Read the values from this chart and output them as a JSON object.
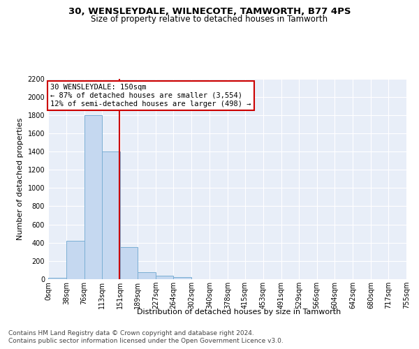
{
  "title": "30, WENSLEYDALE, WILNECOTE, TAMWORTH, B77 4PS",
  "subtitle": "Size of property relative to detached houses in Tamworth",
  "xlabel": "Distribution of detached houses by size in Tamworth",
  "ylabel": "Number of detached properties",
  "bin_edges": [
    0,
    38,
    76,
    113,
    151,
    189,
    227,
    264,
    302,
    340,
    378,
    415,
    453,
    491,
    529,
    566,
    604,
    642,
    680,
    717,
    755
  ],
  "bar_heights": [
    15,
    420,
    1800,
    1400,
    350,
    80,
    35,
    20,
    0,
    0,
    0,
    0,
    0,
    0,
    0,
    0,
    0,
    0,
    0,
    0
  ],
  "bar_color": "#c5d8f0",
  "bar_edgecolor": "#7bafd4",
  "property_size": 150,
  "vline_color": "#cc0000",
  "annotation_line1": "30 WENSLEYDALE: 150sqm",
  "annotation_line2": "← 87% of detached houses are smaller (3,554)",
  "annotation_line3": "12% of semi-detached houses are larger (498) →",
  "annotation_box_color": "white",
  "annotation_box_edgecolor": "#cc0000",
  "ylim": [
    0,
    2200
  ],
  "yticks": [
    0,
    200,
    400,
    600,
    800,
    1000,
    1200,
    1400,
    1600,
    1800,
    2000,
    2200
  ],
  "bg_color": "#e8eef8",
  "footer_line1": "Contains HM Land Registry data © Crown copyright and database right 2024.",
  "footer_line2": "Contains public sector information licensed under the Open Government Licence v3.0.",
  "title_fontsize": 9.5,
  "subtitle_fontsize": 8.5,
  "xlabel_fontsize": 8,
  "ylabel_fontsize": 8,
  "tick_fontsize": 7,
  "footer_fontsize": 6.5,
  "annotation_fontsize": 7.5
}
